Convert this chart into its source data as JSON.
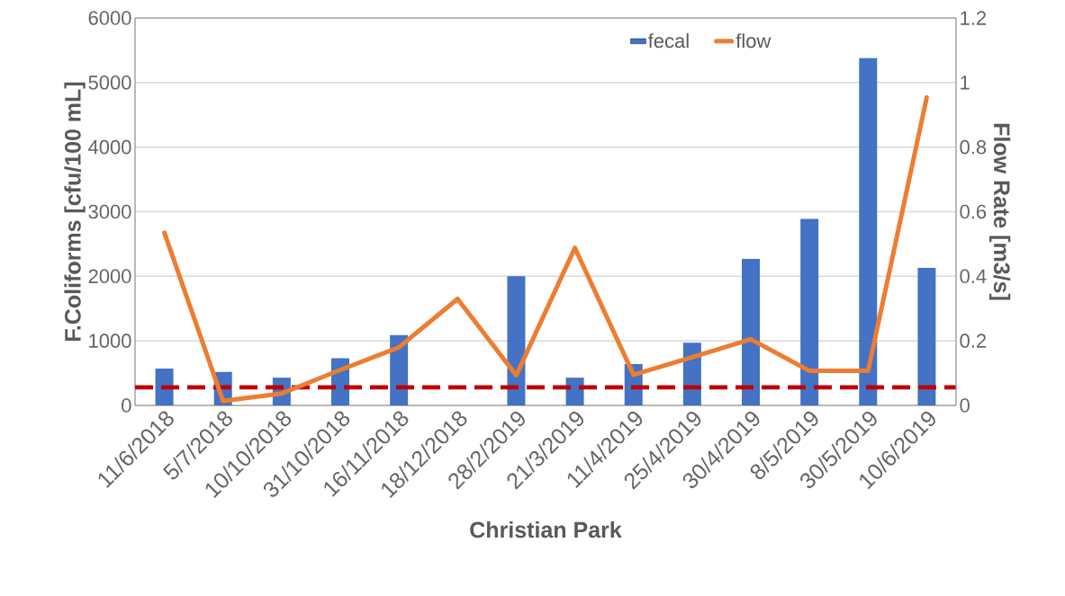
{
  "chart_data": {
    "type": "bar",
    "xlabel": "Christian Park",
    "ylabel": "F.Coliforms  [cfu/100 mL]",
    "y2label": "Flow Rate [m3/s]",
    "categories": [
      "11/6/2018",
      "5/7/2018",
      "10/10/2018",
      "31/10/2018",
      "16/11/2018",
      "18/12/2018",
      "28/2/2019",
      "21/3/2019",
      "11/4/2019",
      "25/4/2019",
      "30/4/2019",
      "8/5/2019",
      "30/5/2019",
      "10/6/2019"
    ],
    "series": [
      {
        "name": "fecal",
        "color": "#4472c4",
        "values": [
          570,
          520,
          430,
          730,
          1090,
          null,
          2000,
          430,
          640,
          970,
          2270,
          2890,
          5380,
          2130
        ]
      },
      {
        "name": "flow",
        "type": "line",
        "axis": "y2",
        "color": "#ed7d31",
        "values": [
          0.535,
          0.014,
          0.037,
          0.11,
          0.18,
          0.33,
          0.093,
          0.488,
          0.095,
          0.149,
          0.205,
          0.107,
          0.107,
          0.954
        ]
      }
    ],
    "ylim": [
      0,
      6000
    ],
    "yticks": [
      0,
      1000,
      2000,
      3000,
      4000,
      5000,
      6000
    ],
    "y2lim": [
      0,
      1.2
    ],
    "y2ticks": [
      0,
      0.2,
      0.4,
      0.6,
      0.8,
      1,
      1.2
    ],
    "ref_lines": [
      {
        "axis": "y",
        "value": 280,
        "color": "#c00000",
        "line_style": "dashed"
      }
    ],
    "grid": "y",
    "legend": "top"
  }
}
